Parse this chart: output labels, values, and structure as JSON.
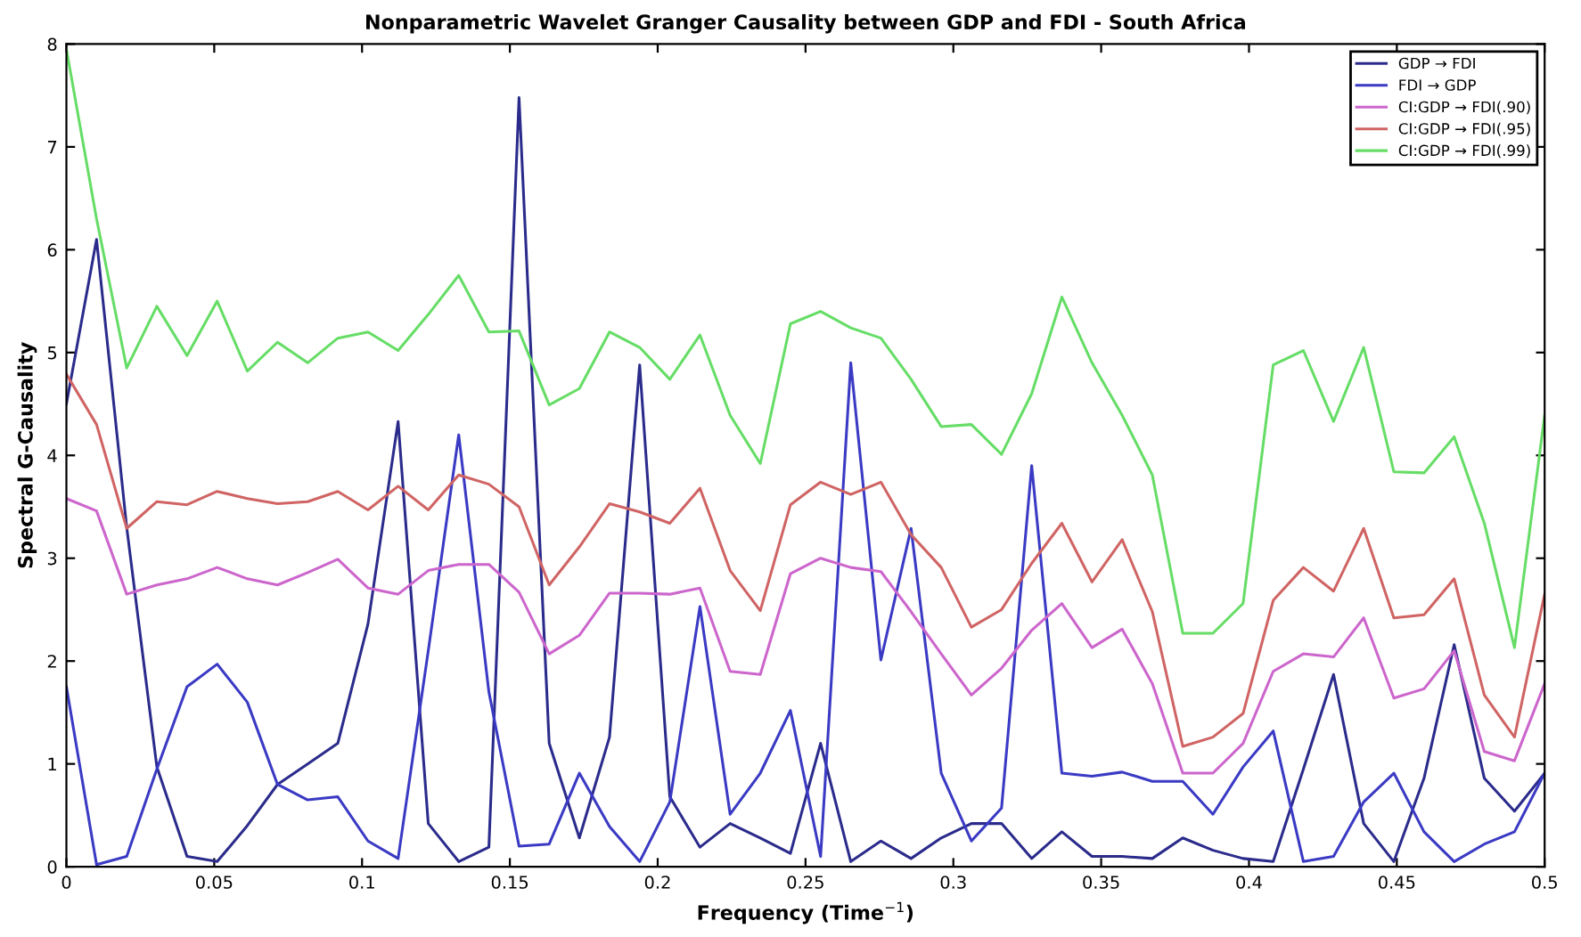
{
  "chart_data": {
    "type": "line",
    "title": "Nonparametric Wavelet Granger Causality between GDP and FDI - South Africa",
    "xlabel": "Frequency (Time$^{−1}$)",
    "ylabel": "Spectral G-Causality",
    "x": [
      0,
      0.0102,
      0.0204,
      0.0306,
      0.0408,
      0.051,
      0.0612,
      0.0714,
      0.0816,
      0.0918,
      0.102,
      0.1122,
      0.1224,
      0.1327,
      0.1429,
      0.1531,
      0.1633,
      0.1735,
      0.1837,
      0.1939,
      0.2041,
      0.2143,
      0.2245,
      0.2347,
      0.2449,
      0.2551,
      0.2653,
      0.2755,
      0.2857,
      0.2959,
      0.3061,
      0.3163,
      0.3265,
      0.3367,
      0.3469,
      0.3571,
      0.3673,
      0.3776,
      0.3878,
      0.398,
      0.4082,
      0.4184,
      0.4286,
      0.4388,
      0.449,
      0.4592,
      0.4694,
      0.4796,
      0.4898,
      0.5
    ],
    "series": [
      {
        "name": "GDP → FDI",
        "color": "#2b2b8c",
        "values": [
          4.5,
          6.1,
          3.3,
          0.97,
          0.1,
          0.05,
          0.4,
          0.8,
          1.0,
          1.2,
          2.36,
          4.33,
          0.42,
          0.05,
          0.19,
          7.48,
          1.2,
          0.28,
          1.26,
          4.88,
          0.68,
          0.19,
          0.42,
          0.28,
          0.13,
          1.2,
          0.05,
          0.25,
          0.08,
          0.28,
          0.42,
          0.42,
          0.08,
          0.34,
          0.1,
          0.1,
          0.08,
          0.28,
          0.16,
          0.08,
          0.05,
          0.95,
          1.87,
          0.42,
          0.05,
          0.86,
          2.16,
          0.86,
          0.54,
          0.91
        ]
      },
      {
        "name": "FDI → GDP",
        "color": "#3a3ac4",
        "values": [
          1.75,
          0.02,
          0.1,
          0.95,
          1.75,
          1.97,
          1.6,
          0.8,
          0.65,
          0.68,
          0.25,
          0.08,
          2.1,
          4.2,
          1.7,
          0.2,
          0.22,
          0.91,
          0.39,
          0.05,
          0.63,
          2.53,
          0.51,
          0.91,
          1.52,
          0.1,
          4.9,
          2.01,
          3.29,
          0.91,
          0.25,
          0.57,
          3.9,
          0.91,
          0.88,
          0.92,
          0.83,
          0.83,
          0.51,
          0.97,
          1.32,
          0.05,
          0.1,
          0.63,
          0.91,
          0.34,
          0.05,
          0.22,
          0.34,
          0.91
        ]
      },
      {
        "name": "CI:GDP → FDI(.90)",
        "color": "#cc66cc",
        "values": [
          3.58,
          3.46,
          2.65,
          2.74,
          2.8,
          2.91,
          2.8,
          2.74,
          2.86,
          2.99,
          2.71,
          2.65,
          2.88,
          2.94,
          2.94,
          2.67,
          2.07,
          2.25,
          2.66,
          2.66,
          2.65,
          2.71,
          1.9,
          1.87,
          2.85,
          3.0,
          2.91,
          2.87,
          2.48,
          2.07,
          1.67,
          1.93,
          2.3,
          2.56,
          2.13,
          2.31,
          1.78,
          0.91,
          0.91,
          1.2,
          1.9,
          2.07,
          2.04,
          2.42,
          1.64,
          1.73,
          2.1,
          1.12,
          1.03,
          1.78
        ]
      },
      {
        "name": "CI:GDP → FDI(.95)",
        "color": "#d06464",
        "values": [
          4.79,
          4.3,
          3.29,
          3.55,
          3.52,
          3.65,
          3.58,
          3.53,
          3.55,
          3.65,
          3.47,
          3.7,
          3.47,
          3.81,
          3.72,
          3.5,
          2.74,
          3.11,
          3.53,
          3.45,
          3.34,
          3.68,
          2.88,
          2.49,
          3.52,
          3.74,
          3.62,
          3.74,
          3.23,
          2.91,
          2.33,
          2.5,
          2.95,
          3.34,
          2.77,
          3.18,
          2.48,
          1.17,
          1.26,
          1.49,
          2.59,
          2.91,
          2.68,
          3.29,
          2.42,
          2.45,
          2.8,
          1.67,
          1.26,
          2.65
        ]
      },
      {
        "name": "CI:GDP → FDI(.99)",
        "color": "#66dd66",
        "values": [
          7.95,
          6.3,
          4.85,
          5.45,
          4.97,
          5.5,
          4.82,
          5.1,
          4.9,
          5.14,
          5.2,
          5.02,
          5.37,
          5.75,
          5.2,
          5.21,
          4.49,
          4.65,
          5.2,
          5.05,
          4.74,
          5.17,
          4.39,
          3.92,
          5.28,
          5.4,
          5.24,
          5.14,
          4.74,
          4.28,
          4.3,
          4.01,
          4.6,
          5.54,
          4.9,
          4.39,
          3.81,
          2.27,
          2.27,
          2.56,
          4.88,
          5.02,
          4.33,
          5.05,
          3.84,
          3.83,
          4.18,
          3.34,
          2.13,
          4.39
        ]
      }
    ],
    "xlim": [
      0,
      0.5
    ],
    "xticks": [
      0,
      0.05,
      0.1,
      0.15,
      0.2,
      0.25,
      0.3,
      0.35,
      0.4,
      0.45,
      0.5
    ],
    "ylim": [
      0,
      8
    ],
    "yticks": [
      0,
      1,
      2,
      3,
      4,
      5,
      6,
      7,
      8
    ],
    "legend": "top right",
    "line_style": "solid"
  }
}
